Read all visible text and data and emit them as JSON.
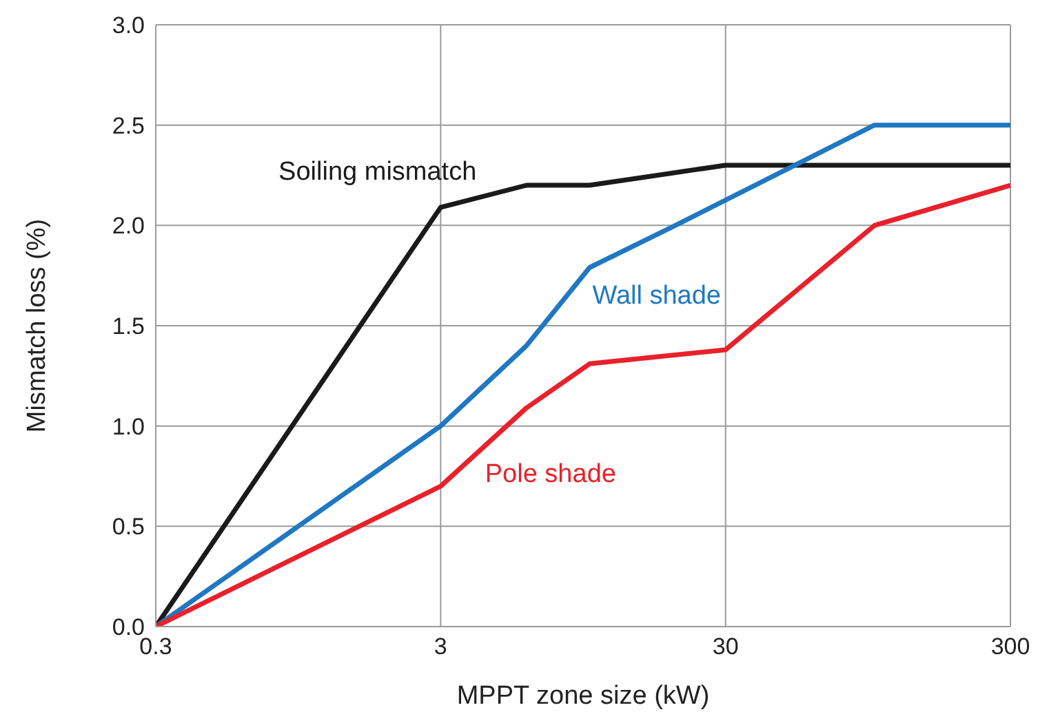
{
  "chart_data": {
    "type": "line",
    "xlabel": "MPPT zone size (kW)",
    "ylabel": "Mismatch loss (%)",
    "log": "x",
    "xlim": [
      0.3,
      300
    ],
    "xticks": [
      0.3,
      3,
      30,
      300
    ],
    "ylim": [
      0,
      3
    ],
    "yticks": [
      {
        "value": 0,
        "label": "0.0"
      },
      {
        "value": 0.5,
        "label": "0.5"
      },
      {
        "value": 1,
        "label": "1.0"
      },
      {
        "value": 1.5,
        "label": "1.5"
      },
      {
        "value": 2,
        "label": "2.0"
      },
      {
        "value": 2.5,
        "label": "2.5"
      },
      {
        "value": 3,
        "label": "3.0"
      }
    ],
    "grid": true,
    "legend": false,
    "marker": "none",
    "line_style": "solid",
    "series": [
      {
        "name": "Soiling mismatch",
        "color": "#1a1a1a",
        "x": [
          0.3,
          3,
          6,
          10,
          30,
          300
        ],
        "values": [
          0,
          2.09,
          2.2,
          2.2,
          2.3,
          2.3
        ]
      },
      {
        "name": "Wall shade",
        "color": "#1f78c1",
        "x": [
          0.3,
          3,
          6,
          10,
          20,
          100,
          300
        ],
        "values": [
          0,
          1.0,
          1.4,
          1.79,
          2.0,
          2.5,
          2.5
        ]
      },
      {
        "name": "Pole shade",
        "color": "#e8212b",
        "x": [
          0.3,
          3,
          6,
          10,
          30,
          100,
          300
        ],
        "values": [
          0,
          0.7,
          1.09,
          1.31,
          1.38,
          2.0,
          2.2
        ]
      }
    ]
  }
}
